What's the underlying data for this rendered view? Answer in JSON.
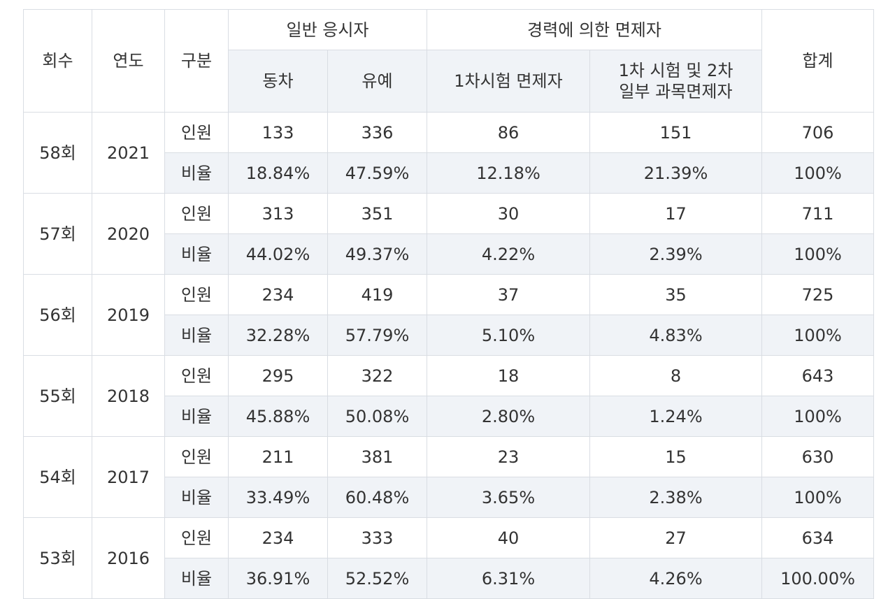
{
  "header": {
    "round": "회수",
    "year": "연도",
    "category": "구분",
    "general": "일반 응시자",
    "career": "경력에 의한 면제자",
    "total": "합계",
    "tie": "동차",
    "grace": "유예",
    "exempt1": "1차시험 면제자",
    "exempt2_line1": "1차 시험 및 2차",
    "exempt2_line2": "일부 과목면제자"
  },
  "rows": [
    {
      "round": "58회",
      "year": "2021",
      "count": {
        "label": "인원",
        "values": [
          "133",
          "336",
          "86",
          "151",
          "706"
        ]
      },
      "ratio": {
        "label": "비율",
        "values": [
          "18.84%",
          "47.59%",
          "12.18%",
          "21.39%",
          "100%"
        ]
      }
    },
    {
      "round": "57회",
      "year": "2020",
      "count": {
        "label": "인원",
        "values": [
          "313",
          "351",
          "30",
          "17",
          "711"
        ]
      },
      "ratio": {
        "label": "비율",
        "values": [
          "44.02%",
          "49.37%",
          "4.22%",
          "2.39%",
          "100%"
        ]
      }
    },
    {
      "round": "56회",
      "year": "2019",
      "count": {
        "label": "인원",
        "values": [
          "234",
          "419",
          "37",
          "35",
          "725"
        ]
      },
      "ratio": {
        "label": "비율",
        "values": [
          "32.28%",
          "57.79%",
          "5.10%",
          "4.83%",
          "100%"
        ]
      }
    },
    {
      "round": "55회",
      "year": "2018",
      "count": {
        "label": "인원",
        "values": [
          "295",
          "322",
          "18",
          "8",
          "643"
        ]
      },
      "ratio": {
        "label": "비율",
        "values": [
          "45.88%",
          "50.08%",
          "2.80%",
          "1.24%",
          "100%"
        ]
      }
    },
    {
      "round": "54회",
      "year": "2017",
      "count": {
        "label": "인원",
        "values": [
          "211",
          "381",
          "23",
          "15",
          "630"
        ]
      },
      "ratio": {
        "label": "비율",
        "values": [
          "33.49%",
          "60.48%",
          "3.65%",
          "2.38%",
          "100%"
        ]
      }
    },
    {
      "round": "53회",
      "year": "2016",
      "count": {
        "label": "인원",
        "values": [
          "234",
          "333",
          "40",
          "27",
          "634"
        ]
      },
      "ratio": {
        "label": "비율",
        "values": [
          "36.91%",
          "52.52%",
          "6.31%",
          "4.26%",
          "100.00%"
        ]
      }
    }
  ]
}
